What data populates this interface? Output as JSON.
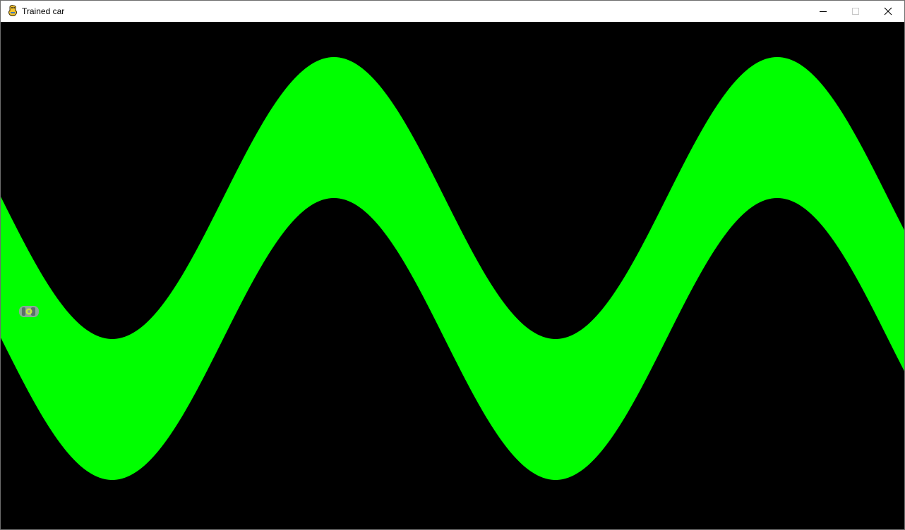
{
  "window": {
    "title": "Trained car",
    "app_icon": "pygame-snake-icon",
    "controls": {
      "minimize_icon": "minimize-icon",
      "maximize_icon": "maximize-icon",
      "close_icon": "close-icon"
    }
  },
  "game": {
    "background_color": "#000000",
    "track_color": "#00ff00",
    "car_body_color": "#8aa896",
    "car_window_color": "#5c6e6a",
    "car_roof_color": "#c8e640",
    "car_icon": "car-icon"
  }
}
